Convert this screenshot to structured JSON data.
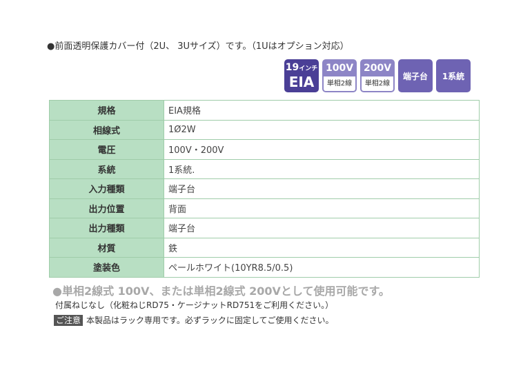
{
  "intro": "●前面透明保護カバー付（2U、 3Uサイズ）です。（1Uはオプション対応）",
  "badges": {
    "eia": {
      "top": "19",
      "top_small": "インチ",
      "bottom": "EIA"
    },
    "v100": {
      "top": "100V",
      "bottom": "単相2線"
    },
    "v200": {
      "top": "200V",
      "bottom": "単相2線"
    },
    "terminal": "端子台",
    "system": "1系統"
  },
  "specs": [
    {
      "label": "規格",
      "value": "EIA規格"
    },
    {
      "label": "相線式",
      "value": "1Ø2W"
    },
    {
      "label": "電圧",
      "value": "100V・200V"
    },
    {
      "label": "系統",
      "value": "1系統."
    },
    {
      "label": "入力種類",
      "value": "端子台"
    },
    {
      "label": "出力位置",
      "value": "背面"
    },
    {
      "label": "出力種類",
      "value": "端子台"
    },
    {
      "label": "材質",
      "value": "鉄"
    },
    {
      "label": "塗装色",
      "value": "ペールホワイト(10YR8.5/0.5)"
    }
  ],
  "notes": {
    "usage": "●単相2線式 100V、または単相2線式 200Vとして使用可能です。",
    "screws": "付属ねじなし（化粧ねじRD75・ケージナットRD751をご利用ください。）",
    "caution_label": "ご注意",
    "caution_text": "本製品はラック専用です。必ずラックに固定してご使用ください。"
  }
}
